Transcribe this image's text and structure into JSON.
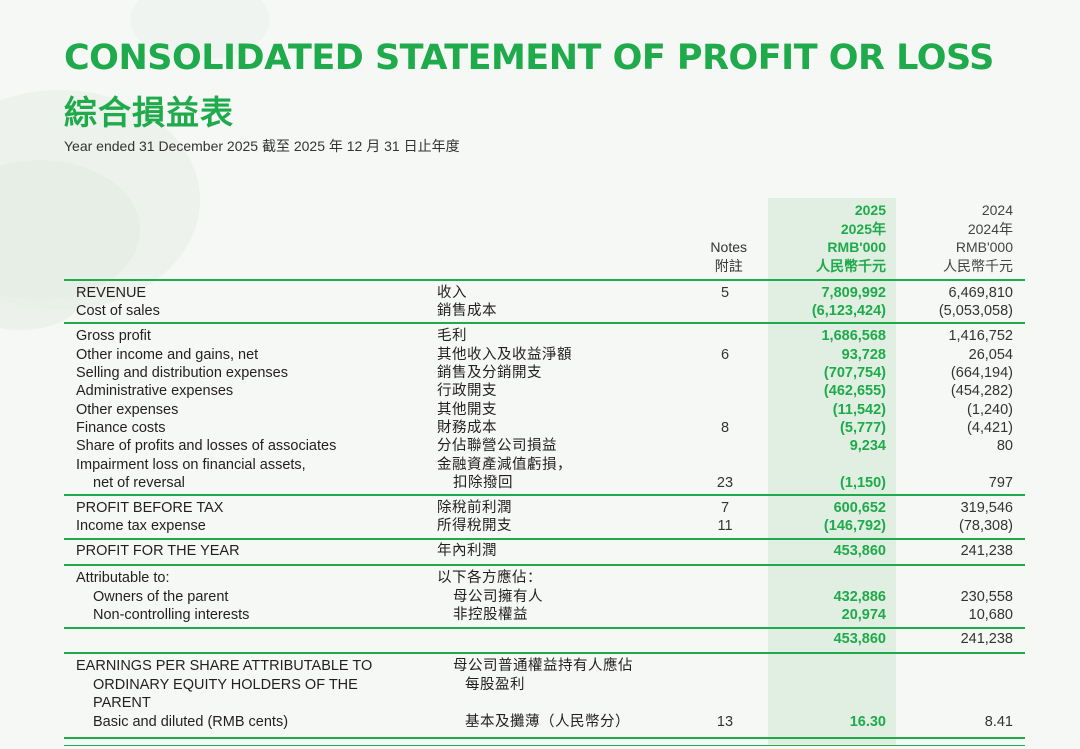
{
  "header": {
    "title_en": "CONSOLIDATED STATEMENT OF PROFIT OR LOSS",
    "title_zh": "綜合損益表",
    "subtitle": "Year ended 31 December 2025 截至 2025 年 12 月 31 日止年度"
  },
  "columns": {
    "notes": [
      "Notes",
      "附註"
    ],
    "current": [
      "2025",
      "2025年",
      "RMB'000",
      "人民幣千元"
    ],
    "prior": [
      "2024",
      "2024年",
      "RMB'000",
      "人民幣千元"
    ]
  },
  "rows": {
    "revenue": {
      "en": "REVENUE",
      "zh": "收入",
      "note": "5",
      "v2025": "7,809,992",
      "v2024": "6,469,810"
    },
    "cost_of_sales": {
      "en": "Cost of sales",
      "zh": "銷售成本",
      "note": "",
      "v2025": "(6,123,424)",
      "v2024": "(5,053,058)"
    },
    "gross_profit": {
      "en": "Gross profit",
      "zh": "毛利",
      "note": "",
      "v2025": "1,686,568",
      "v2024": "1,416,752"
    },
    "other_income": {
      "en": "Other income and gains, net",
      "zh": "其他收入及收益淨額",
      "note": "6",
      "v2025": "93,728",
      "v2024": "26,054"
    },
    "selling": {
      "en": "Selling and distribution expenses",
      "zh": "銷售及分銷開支",
      "note": "",
      "v2025": "(707,754)",
      "v2024": "(664,194)"
    },
    "admin": {
      "en": "Administrative expenses",
      "zh": "行政開支",
      "note": "",
      "v2025": "(462,655)",
      "v2024": "(454,282)"
    },
    "other_exp": {
      "en": "Other expenses",
      "zh": "其他開支",
      "note": "",
      "v2025": "(11,542)",
      "v2024": "(1,240)"
    },
    "finance": {
      "en": "Finance costs",
      "zh": "財務成本",
      "note": "8",
      "v2025": "(5,777)",
      "v2024": "(4,421)"
    },
    "associates": {
      "en": "Share of profits and losses of associates",
      "zh": "分佔聯營公司損益",
      "note": "",
      "v2025": "9,234",
      "v2024": "80"
    },
    "impairment": {
      "en": "Impairment loss on financial assets,",
      "en2": "net of reversal",
      "zh": "金融資產減值虧損，",
      "zh2": "扣除撥回",
      "note": "23",
      "v2025": "(1,150)",
      "v2024": "797"
    },
    "pbt": {
      "en": "PROFIT BEFORE TAX",
      "zh": "除稅前利潤",
      "note": "7",
      "v2025": "600,652",
      "v2024": "319,546"
    },
    "tax": {
      "en": "Income tax expense",
      "zh": "所得稅開支",
      "note": "11",
      "v2025": "(146,792)",
      "v2024": "(78,308)"
    },
    "pfy": {
      "en": "PROFIT FOR THE YEAR",
      "zh": "年內利潤",
      "note": "",
      "v2025": "453,860",
      "v2024": "241,238"
    },
    "attributable": {
      "en": "Attributable to:",
      "zh": "以下各方應佔："
    },
    "owners": {
      "en": "Owners of the parent",
      "zh": "母公司擁有人",
      "v2025": "432,886",
      "v2024": "230,558"
    },
    "nci": {
      "en": "Non-controlling interests",
      "zh": "非控股權益",
      "v2025": "20,974",
      "v2024": "10,680"
    },
    "attr_total": {
      "v2025": "453,860",
      "v2024": "241,238"
    },
    "eps": {
      "en1": "EARNINGS PER SHARE ATTRIBUTABLE TO",
      "en2": "ORDINARY EQUITY HOLDERS OF THE",
      "en3": "PARENT",
      "zh1": "母公司普通權益持有人應佔",
      "zh2": "每股盈利"
    },
    "eps_basic": {
      "en": "Basic and diluted (RMB cents)",
      "zh": "基本及攤薄（人民幣分）",
      "note": "13",
      "v2025": "16.30",
      "v2024": "8.41"
    }
  },
  "colors": {
    "accent": "#1faa4b",
    "highlight": "#e0efe1"
  }
}
